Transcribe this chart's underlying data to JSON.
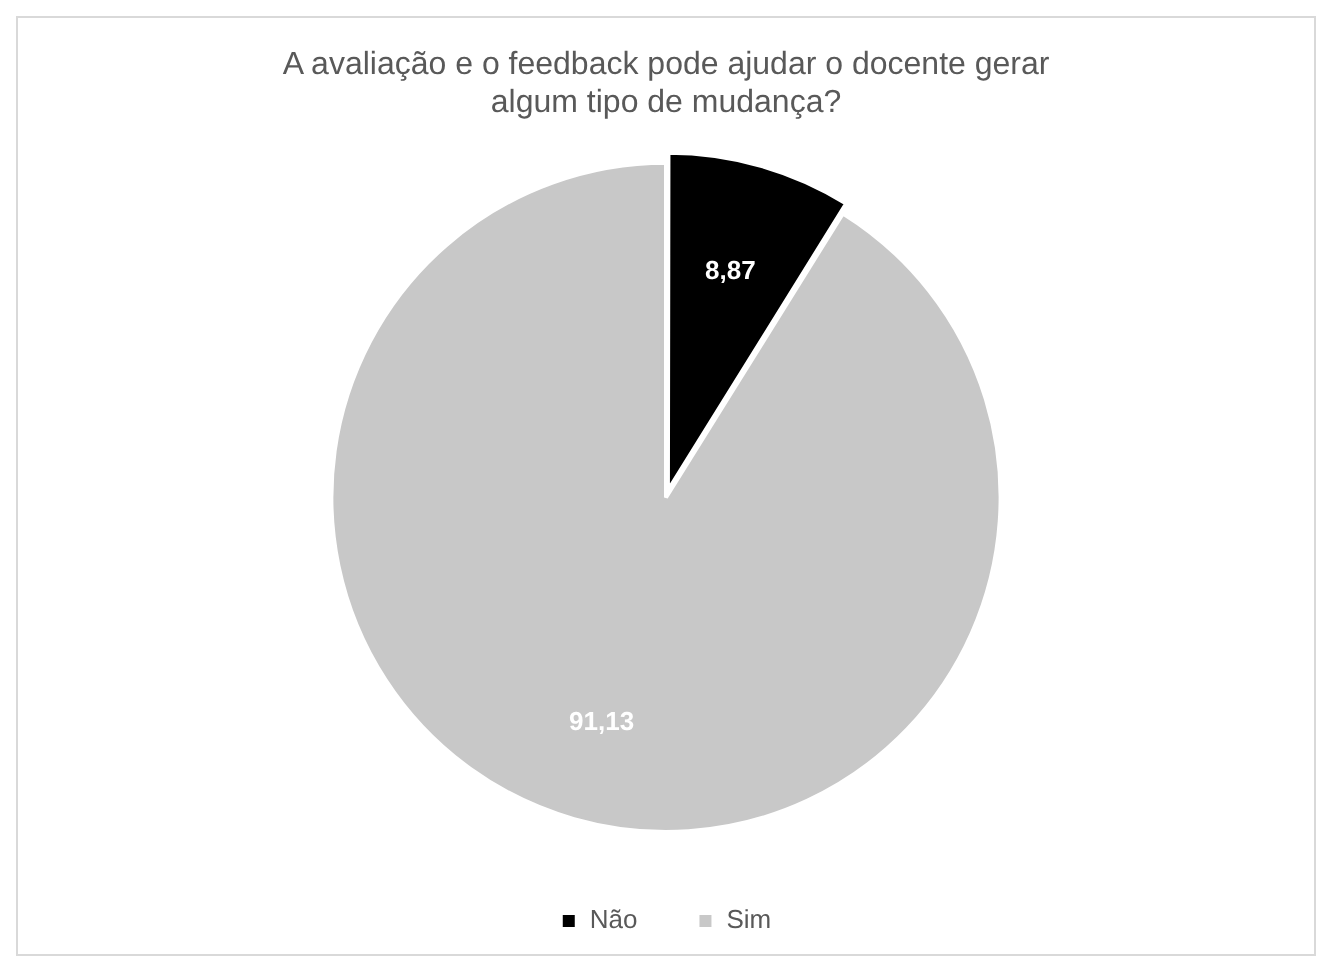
{
  "chart_data": {
    "type": "pie",
    "title": "A avaliação e o feedback pode ajudar o docente gerar\nalgum tipo de mudança?",
    "categories": [
      "Não",
      "Sim"
    ],
    "values": [
      8.87,
      91.13
    ],
    "colors": [
      "#000000",
      "#c8c8c8"
    ],
    "value_labels": [
      "8,87",
      "91,13"
    ],
    "legend": "bottom"
  }
}
